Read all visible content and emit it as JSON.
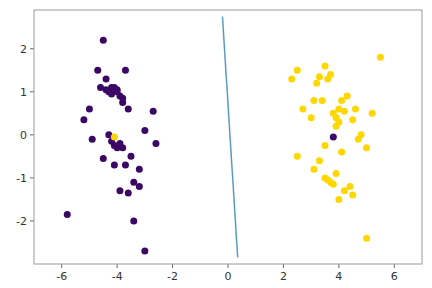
{
  "chart_data": {
    "type": "scatter",
    "series": [
      {
        "type": "scatter",
        "color": "#3b0764",
        "x": [
          -5.8,
          -4.5,
          -5.2,
          -5.0,
          -4.7,
          -4.4,
          -4.2,
          -4.0,
          -3.8,
          -3.6,
          -4.9,
          -4.6,
          -4.4,
          -4.3,
          -4.2,
          -4.1,
          -4.0,
          -3.9,
          -3.8,
          -3.7,
          -4.3,
          -4.2,
          -4.1,
          -4.0,
          -3.9,
          -3.8,
          -3.7,
          -3.5,
          -3.4,
          -3.2,
          -4.5,
          -4.1,
          -3.9,
          -3.6,
          -3.4,
          -3.2,
          -3.0,
          -2.7,
          -2.6,
          -3.0
        ],
        "values": [
          -1.85,
          2.2,
          0.35,
          0.6,
          1.5,
          1.3,
          1.1,
          1.0,
          0.75,
          0.6,
          -0.1,
          1.1,
          1.05,
          1.0,
          0.95,
          1.1,
          1.05,
          0.9,
          0.85,
          1.5,
          0.0,
          -0.15,
          -0.25,
          -0.3,
          -0.2,
          -0.3,
          -0.7,
          -0.5,
          -1.1,
          -0.8,
          -0.55,
          -0.7,
          -1.3,
          -1.35,
          -2.0,
          -1.2,
          0.1,
          0.55,
          -0.2,
          -2.7
        ]
      },
      {
        "type": "scatter",
        "color": "#ffd700",
        "x": [
          2.5,
          2.3,
          2.5,
          2.7,
          3.0,
          3.1,
          3.3,
          3.2,
          3.4,
          3.5,
          3.6,
          3.8,
          3.7,
          3.9,
          3.9,
          4.0,
          4.1,
          4.2,
          4.0,
          4.3,
          4.5,
          4.6,
          4.7,
          4.8,
          5.0,
          5.2,
          5.5,
          3.5,
          3.3,
          3.1,
          3.5,
          3.6,
          3.7,
          3.8,
          3.9,
          4.0,
          4.2,
          4.4,
          4.1,
          4.5,
          5.0
        ],
        "values": [
          -0.5,
          1.3,
          1.5,
          0.6,
          0.4,
          0.8,
          1.35,
          1.2,
          0.8,
          1.6,
          1.3,
          0.5,
          1.4,
          0.4,
          0.2,
          0.6,
          0.8,
          0.55,
          0.3,
          0.9,
          0.35,
          0.6,
          -0.1,
          0.0,
          -0.3,
          0.5,
          1.8,
          -0.25,
          -0.6,
          -0.8,
          -1.0,
          -1.05,
          -1.1,
          -1.15,
          -0.9,
          -1.5,
          -1.3,
          -1.2,
          -0.4,
          -1.4,
          -2.4
        ]
      },
      {
        "type": "scatter",
        "color": "#ffd700",
        "x": [
          -4.1
        ],
        "values": [
          -0.05
        ]
      },
      {
        "type": "scatter",
        "color": "#3b0764",
        "x": [
          3.8
        ],
        "values": [
          -0.05
        ]
      },
      {
        "type": "line",
        "color": "#5b9abf",
        "x": [
          -0.2,
          0.35
        ],
        "values": [
          2.75,
          -2.85
        ]
      }
    ],
    "xlim": [
      -7,
      7
    ],
    "ylim": [
      -3.0,
      2.9
    ],
    "xticks": [
      -6,
      -4,
      -2,
      0,
      2,
      4,
      6
    ],
    "yticks": [
      -2,
      -1,
      0,
      1,
      2
    ],
    "grid": false
  }
}
